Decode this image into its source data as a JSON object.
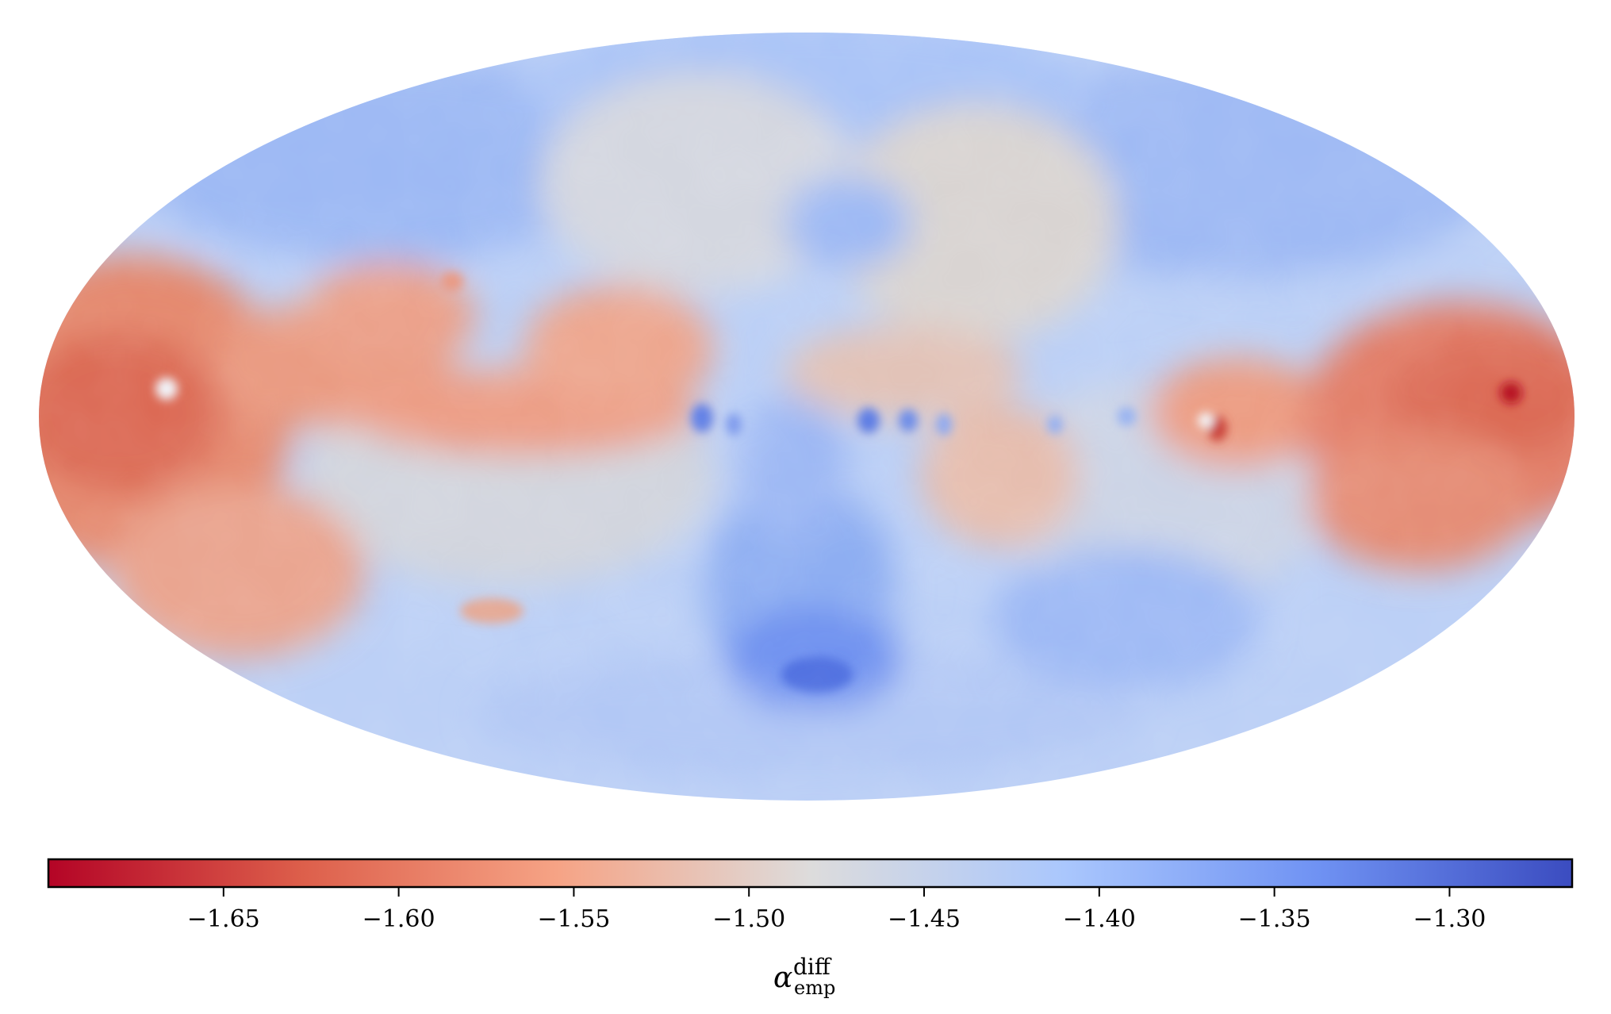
{
  "map": {
    "projection": "mollweide",
    "colormap": "coolwarm_r",
    "colormap_stops": [
      "#b40426",
      "#dd5f4b",
      "#f6a385",
      "#dddcdc",
      "#aac7fd",
      "#6f92f3",
      "#3b4cc0"
    ]
  },
  "colorbar": {
    "min": -1.7,
    "max": -1.265,
    "ticks": [
      {
        "value": -1.65,
        "label": "−1.65"
      },
      {
        "value": -1.6,
        "label": "−1.60"
      },
      {
        "value": -1.55,
        "label": "−1.55"
      },
      {
        "value": -1.5,
        "label": "−1.50"
      },
      {
        "value": -1.45,
        "label": "−1.45"
      },
      {
        "value": -1.4,
        "label": "−1.40"
      },
      {
        "value": -1.35,
        "label": "−1.35"
      },
      {
        "value": -1.3,
        "label": "−1.30"
      }
    ],
    "label": {
      "symbol": "α",
      "superscript": "diff",
      "subscript": "emp"
    }
  }
}
